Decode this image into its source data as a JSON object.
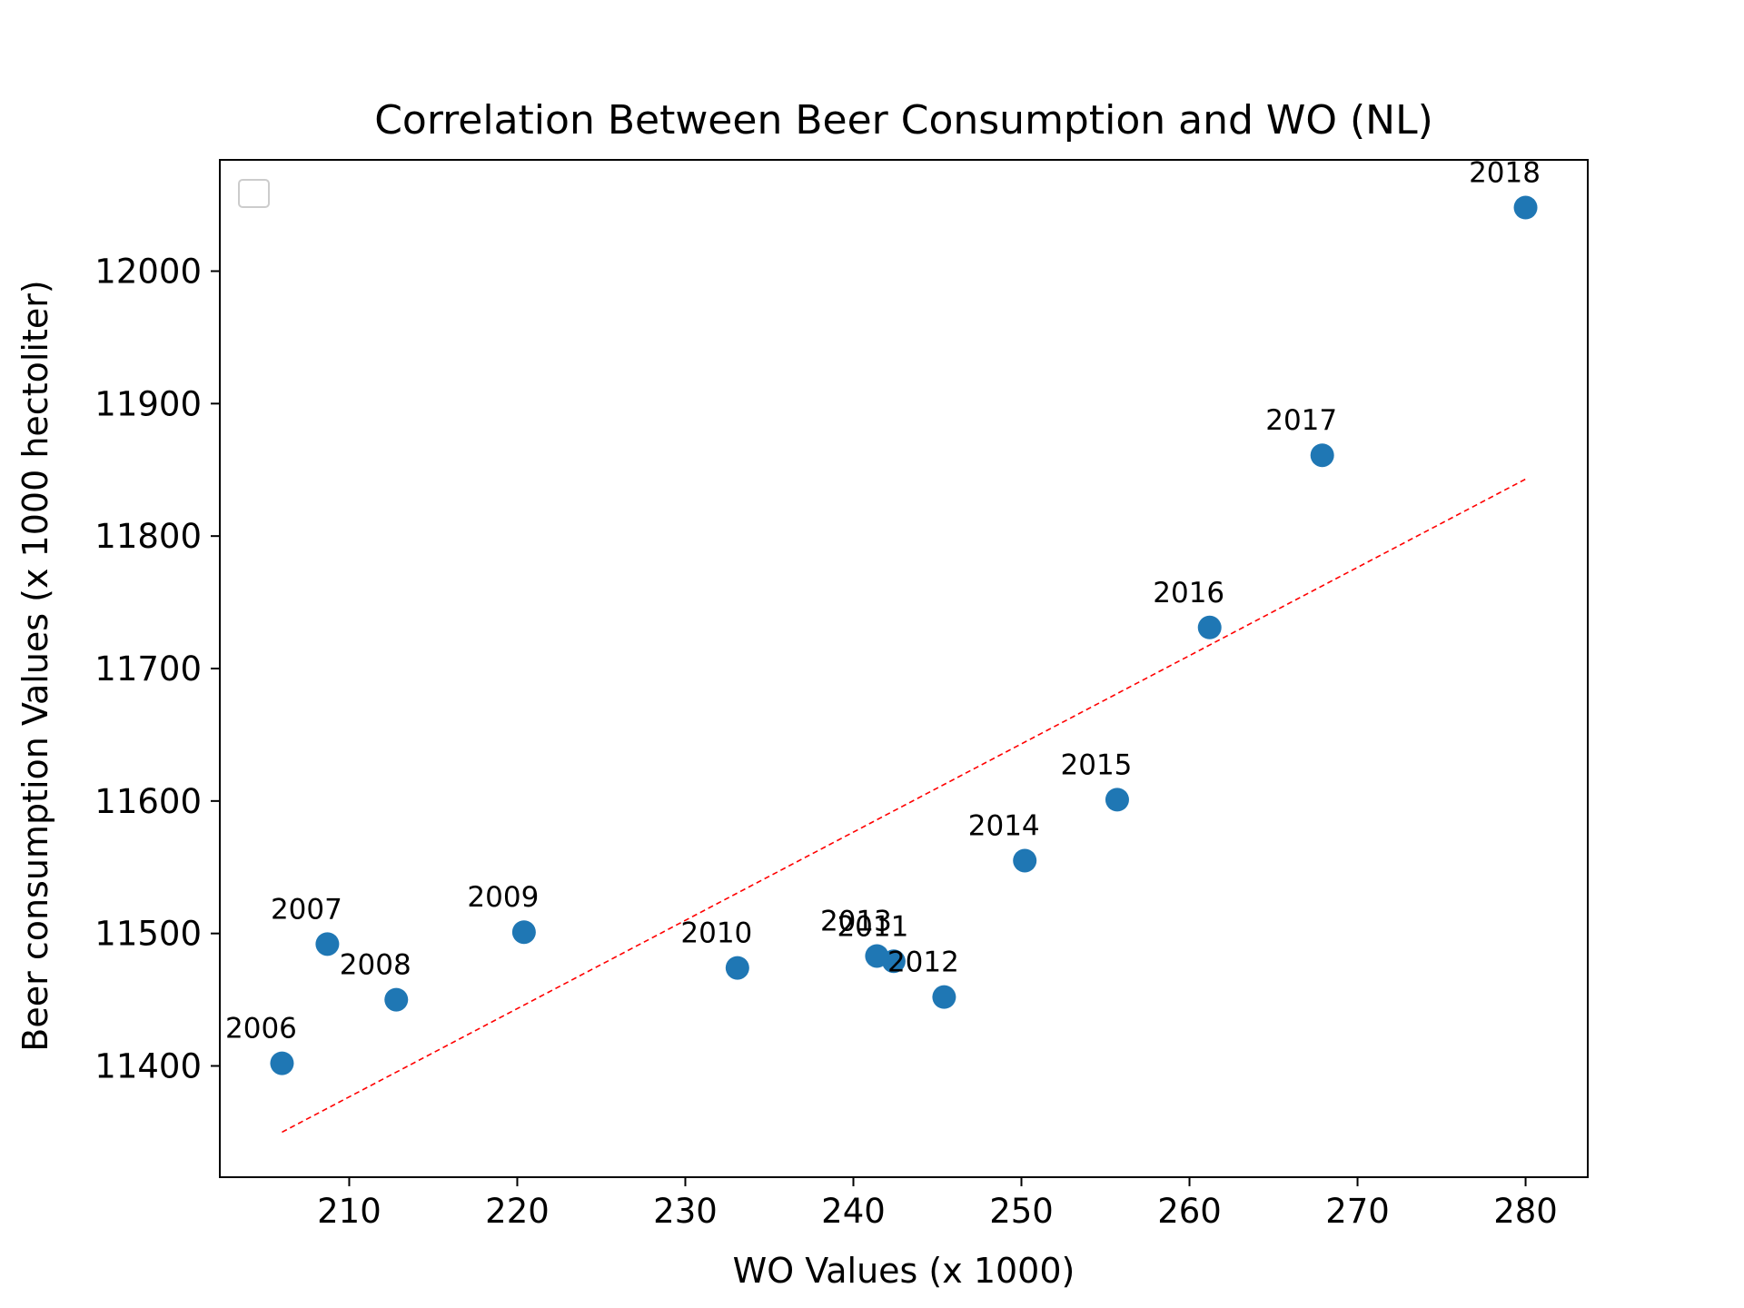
{
  "chart_data": {
    "type": "scatter",
    "title": "Correlation Between Beer Consumption and WO (NL)",
    "xlabel": "WO Values (x 1000)",
    "ylabel": "Beer consumption Values (x 1000 hectoliter)",
    "xlim": [
      202.3,
      283.7
    ],
    "ylim": [
      11316,
      12084
    ],
    "x_ticks": [
      210,
      220,
      230,
      240,
      250,
      260,
      270,
      280
    ],
    "y_ticks": [
      11400,
      11500,
      11600,
      11700,
      11800,
      11900,
      12000
    ],
    "grid": false,
    "legend": "upper-left (empty)",
    "point_color": "#1f77b4",
    "trend_color": "#ff0000",
    "series": [
      {
        "x": [
          206.0,
          208.7,
          212.8,
          220.4,
          233.1,
          242.4,
          245.4,
          241.4,
          250.2,
          255.7,
          261.2,
          267.9,
          280.0
        ],
        "y": [
          11402,
          11492,
          11450,
          11501,
          11474,
          11479,
          11452,
          11483,
          11555,
          11601,
          11731,
          11861,
          12048
        ],
        "labels": [
          "2006",
          "2007",
          "2008",
          "2009",
          "2010",
          "2011",
          "2012",
          "2013",
          "2014",
          "2015",
          "2016",
          "2017",
          "2018"
        ]
      }
    ],
    "trendline": {
      "x": [
        206.0,
        280.0
      ],
      "y": [
        11350,
        11843
      ]
    }
  }
}
